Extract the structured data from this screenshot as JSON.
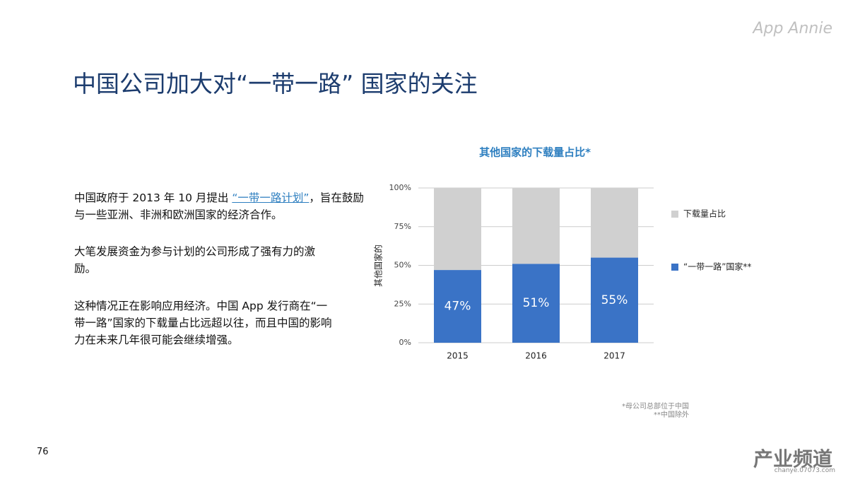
{
  "header": {
    "title": "中国公司加大对“一带一路” 国家的关注",
    "logo": "App Annie",
    "page_number": "76"
  },
  "body": {
    "paragraphs": [
      {
        "before": "中国政府于 2013 年 10 月提出 ",
        "link": "“一带一路计划”",
        "after": "，",
        "rest": "旨在鼓励与一些亚洲、非洲和欧洲国家的经济合作。"
      },
      {
        "text": "大笔发展资金为参与计划的公司形成了强有力的激励。"
      },
      {
        "text": "这种情况正在影响应用经济。中国 App 发行商在“一带一路”国家的下载量占比远超以往，而且中国的影响力在未来几年很可能会继续增强。"
      }
    ]
  },
  "footnotes": [
    "*母公司总部位于中国",
    "**中国除外"
  ],
  "watermark": {
    "brand": "产业频道",
    "site": "chanye.07073.com"
  },
  "chart_data": {
    "type": "stacked_bar",
    "title": "其他国家的下载量占比*",
    "y_label": "其他国家的",
    "categories": [
      "2015",
      "2016",
      "2017"
    ],
    "series": [
      {
        "name": "“一带一路”国家**",
        "color": "#3a73c6",
        "values": [
          47,
          51,
          55
        ],
        "value_labels": [
          "47%",
          "51%",
          "55%"
        ]
      },
      {
        "name": "下载量占比",
        "color": "#d0d0d0",
        "values": [
          53,
          49,
          45
        ]
      }
    ],
    "ylim": [
      0,
      100
    ],
    "yticks": [
      {
        "value": 0,
        "label": "0%"
      },
      {
        "value": 25,
        "label": "25%"
      },
      {
        "value": 50,
        "label": "50%"
      },
      {
        "value": 75,
        "label": "75%"
      },
      {
        "value": 100,
        "label": "100%"
      }
    ],
    "grid": true
  }
}
